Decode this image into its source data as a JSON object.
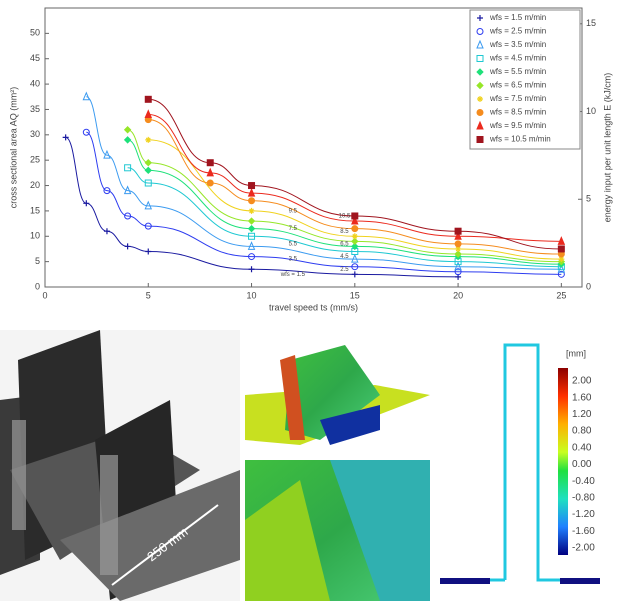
{
  "chart_data": {
    "type": "scatter",
    "xlabel": "travel speed ts (mm/s)",
    "ylabel": "cross sectional area AQ (mm²)",
    "y2label": "energy input per unit length E (kJ/cm)",
    "xlim": [
      0,
      26
    ],
    "xticks": [
      0,
      5,
      10,
      15,
      20,
      25
    ],
    "ylim": [
      0,
      55
    ],
    "yticks": [
      0,
      5,
      10,
      15,
      20,
      25,
      30,
      35,
      40,
      45,
      50
    ],
    "y2lim": [
      0,
      15.9
    ],
    "y2ticks": [
      0,
      5,
      10,
      15
    ],
    "legend": "top-right",
    "series": [
      {
        "name": "wfs = 1.5 m/min",
        "color": "#1a1aa0",
        "marker": "plus",
        "x": [
          1,
          2,
          3,
          4,
          5,
          10,
          15,
          20
        ],
        "values": [
          29.5,
          16.5,
          11,
          8,
          7,
          3.5,
          2.5,
          2
        ]
      },
      {
        "name": "wfs = 2.5 m/min",
        "color": "#2d3cf0",
        "marker": "circle-open",
        "x": [
          2,
          3,
          4,
          5,
          10,
          15,
          20,
          25
        ],
        "values": [
          30.5,
          19,
          14,
          12,
          6,
          4,
          3,
          2.5
        ]
      },
      {
        "name": "wfs = 3.5 m/min",
        "color": "#3c9bf0",
        "marker": "triangle-open",
        "x": [
          2,
          3,
          4,
          5,
          10,
          15,
          20,
          25
        ],
        "values": [
          37.5,
          26,
          19,
          16,
          8,
          5.5,
          4,
          3.5
        ]
      },
      {
        "name": "wfs = 4.5 m/min",
        "color": "#1ec8d2",
        "marker": "square-open",
        "x": [
          4,
          5,
          10,
          15,
          20,
          25
        ],
        "values": [
          23.5,
          20.5,
          10,
          7,
          5,
          4
        ]
      },
      {
        "name": "wfs = 5.5 m/min",
        "color": "#1ee17a",
        "marker": "diamond",
        "x": [
          4,
          5,
          10,
          15,
          20,
          25
        ],
        "values": [
          29,
          23,
          11.5,
          8,
          6,
          4.5
        ]
      },
      {
        "name": "wfs = 6.5 m/min",
        "color": "#96e628",
        "marker": "diamond",
        "x": [
          4,
          5,
          10,
          15,
          20,
          25
        ],
        "values": [
          31,
          24.5,
          13,
          9,
          6.5,
          5
        ]
      },
      {
        "name": "wfs = 7.5 m/min",
        "color": "#f0d21e",
        "marker": "star",
        "x": [
          5,
          10,
          15,
          20,
          25
        ],
        "values": [
          29,
          15,
          10,
          7.5,
          5.5
        ]
      },
      {
        "name": "wfs = 8.5 m/min",
        "color": "#f58c1e",
        "marker": "circle",
        "x": [
          5,
          8,
          10,
          15,
          20,
          25
        ],
        "values": [
          33,
          20.5,
          17,
          11.5,
          8.5,
          6.5
        ]
      },
      {
        "name": "wfs = 9.5 m/min",
        "color": "#eb2a1e",
        "marker": "triangle",
        "x": [
          5,
          8,
          10,
          15,
          20,
          25
        ],
        "values": [
          34,
          22.5,
          18.5,
          13,
          10,
          9
        ]
      },
      {
        "name": "wfs = 10.5 m/min",
        "color": "#a0141e",
        "marker": "square",
        "x": [
          5,
          8,
          10,
          15,
          20,
          25
        ],
        "values": [
          37,
          24.5,
          20,
          14,
          11,
          7.5
        ]
      }
    ],
    "annotations": [
      {
        "text": "9.5",
        "x": 12,
        "y": 15
      },
      {
        "text": "7.5",
        "x": 12,
        "y": 11.5
      },
      {
        "text": "5.5",
        "x": 12,
        "y": 8.5
      },
      {
        "text": "3.5",
        "x": 12,
        "y": 5.5
      },
      {
        "text": "wfs = 1.5",
        "x": 12,
        "y": 2.5
      },
      {
        "text": "10.5",
        "x": 14.5,
        "y": 14
      },
      {
        "text": "8.5",
        "x": 14.5,
        "y": 11
      },
      {
        "text": "6.5",
        "x": 14.5,
        "y": 8.5
      },
      {
        "text": "4.5",
        "x": 14.5,
        "y": 6
      },
      {
        "text": "2.5",
        "x": 14.5,
        "y": 3.5
      }
    ]
  },
  "photo": {
    "label": "250 mm"
  },
  "colorbar": {
    "unit": "[mm]",
    "labels": [
      "2.00",
      "1.60",
      "1.20",
      "0.80",
      "0.40",
      "0.00",
      "-0.40",
      "-0.80",
      "-1.20",
      "-1.60",
      "-2.00"
    ]
  }
}
